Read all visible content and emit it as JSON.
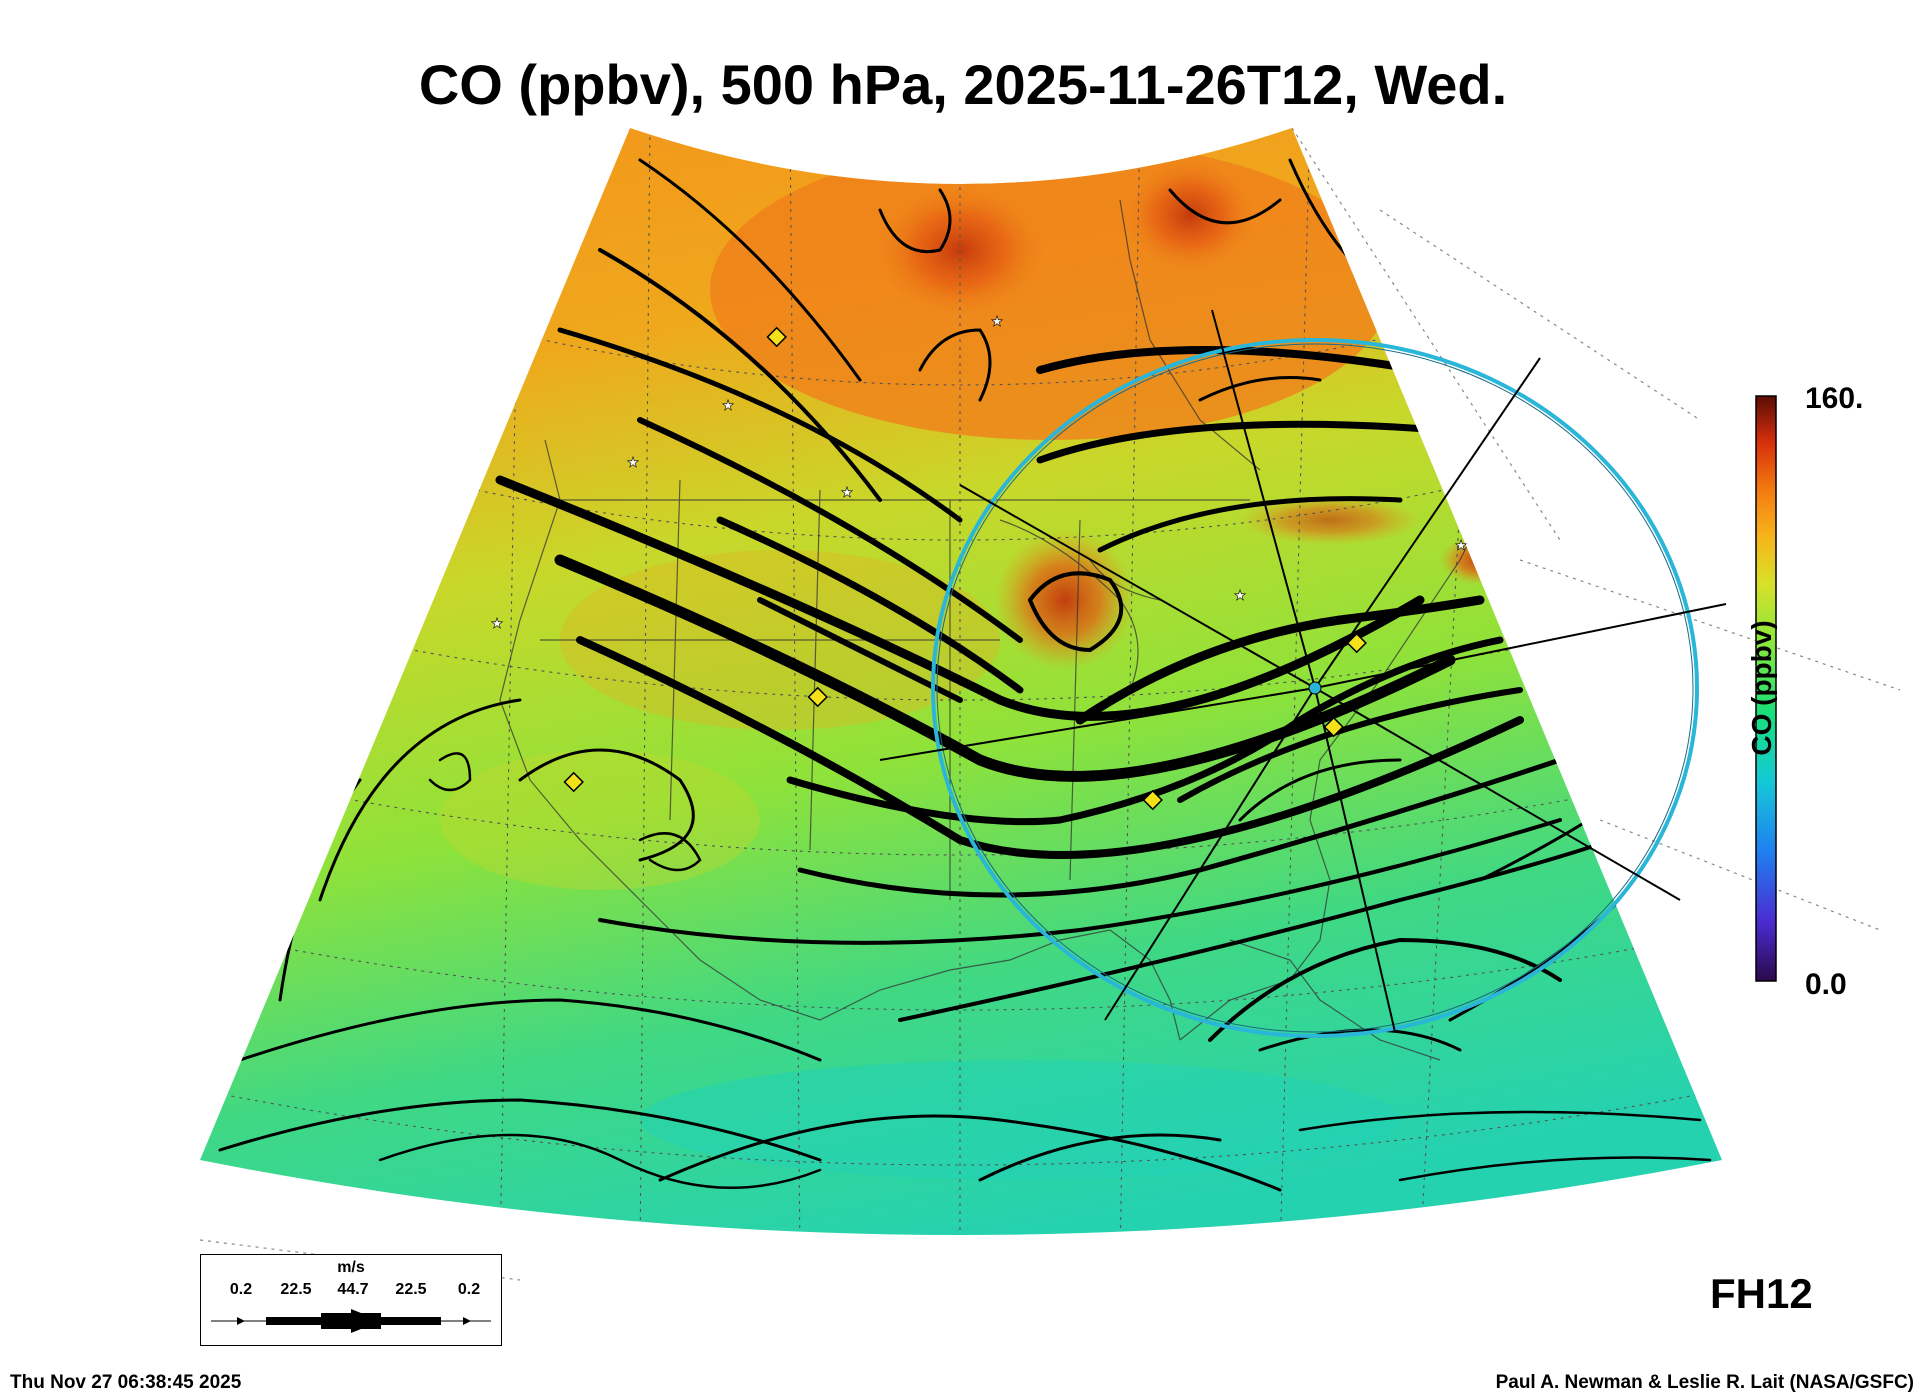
{
  "title": "CO (ppbv), 500 hPa, 2025-11-26T12, Wed.",
  "colorbar": {
    "label": "CO (ppbv)",
    "max_label": "160.",
    "min_label": "0.0",
    "colors": [
      "#3a0f5e",
      "#4b2bd1",
      "#1f7ff0",
      "#15c8d8",
      "#19e07a",
      "#8ce83a",
      "#d8e02a",
      "#f7b41a",
      "#f47a10",
      "#d8300c",
      "#8a1608",
      "#4a0a04"
    ]
  },
  "forecast_hour": "FH12",
  "timestamp": "Thu Nov 27 06:38:45 2025",
  "credit": "Paul A. Newman & Leslie R. Lait (NASA/GSFC)",
  "wind_legend": {
    "unit": "m/s",
    "ticks": [
      "0.2",
      "22.5",
      "44.7",
      "22.5",
      "0.2"
    ]
  },
  "map_colors": {
    "ring": "#29b6d8",
    "marker_fill": "#f3e21a",
    "background_low": "#2fd8a0",
    "background_high": "#f08a18"
  }
}
